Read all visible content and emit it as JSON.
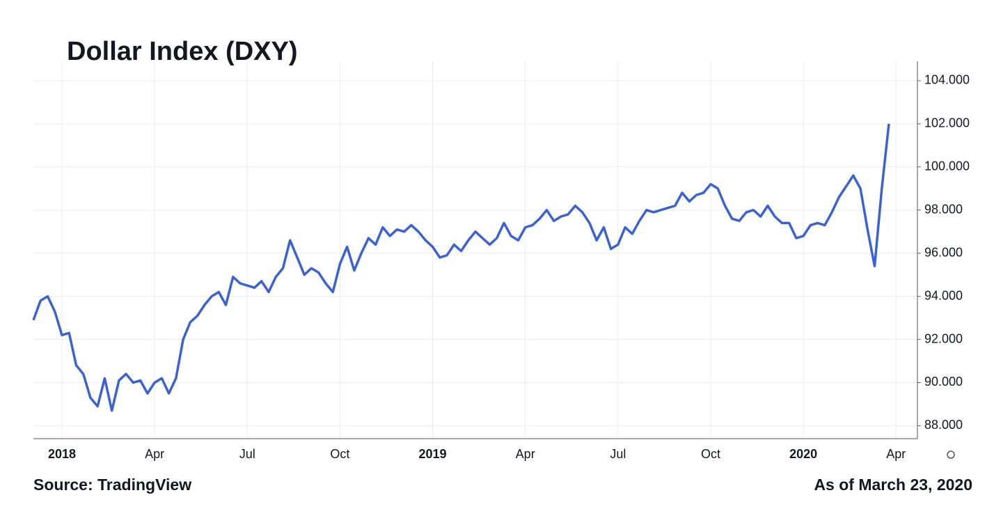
{
  "chart_data": {
    "type": "line",
    "title": "Dollar Index (DXY)",
    "source": "Source: TradingView",
    "as_of": "As of March 23, 2020",
    "categories": [
      null,
      null,
      null,
      null,
      "2018",
      null,
      null,
      null,
      null,
      null,
      null,
      null,
      null,
      null,
      null,
      null,
      null,
      "Apr",
      null,
      null,
      null,
      null,
      null,
      null,
      null,
      null,
      null,
      null,
      null,
      null,
      "Jul",
      null,
      null,
      null,
      null,
      null,
      null,
      null,
      null,
      null,
      null,
      null,
      null,
      "Oct",
      null,
      null,
      null,
      null,
      null,
      null,
      null,
      null,
      null,
      null,
      null,
      null,
      "2019",
      null,
      null,
      null,
      null,
      null,
      null,
      null,
      null,
      null,
      null,
      null,
      null,
      "Apr",
      null,
      null,
      null,
      null,
      null,
      null,
      null,
      null,
      null,
      null,
      null,
      null,
      "Jul",
      null,
      null,
      null,
      null,
      null,
      null,
      null,
      null,
      null,
      null,
      null,
      null,
      "Oct",
      null,
      null,
      null,
      null,
      null,
      null,
      null,
      null,
      null,
      null,
      null,
      null,
      "2020",
      null,
      null,
      null,
      null,
      null,
      null,
      null,
      null,
      null,
      null,
      null,
      null,
      "Apr",
      null,
      null
    ],
    "series": [
      {
        "name": "DXY",
        "color": "#3a62d6",
        "values": [
          92.9,
          93.8,
          94.0,
          93.3,
          92.2,
          92.3,
          90.8,
          90.4,
          89.3,
          88.9,
          90.2,
          88.7,
          90.1,
          90.4,
          90.0,
          90.1,
          89.5,
          90.0,
          90.2,
          89.5,
          90.2,
          92.0,
          92.8,
          93.1,
          93.6,
          94.0,
          94.2,
          93.6,
          94.9,
          94.6,
          94.5,
          94.4,
          94.7,
          94.2,
          94.9,
          95.3,
          96.6,
          95.8,
          95.0,
          95.3,
          95.1,
          94.6,
          94.2,
          95.5,
          96.3,
          95.2,
          96.0,
          96.7,
          96.4,
          97.2,
          96.8,
          97.1,
          97.0,
          97.3,
          97.0,
          96.6,
          96.3,
          95.8,
          95.9,
          96.4,
          96.1,
          96.6,
          97.0,
          96.7,
          96.4,
          96.7,
          97.4,
          96.8,
          96.6,
          97.2,
          97.3,
          97.6,
          98.0,
          97.5,
          97.7,
          97.8,
          98.2,
          97.9,
          97.4,
          96.6,
          97.2,
          96.2,
          96.4,
          97.2,
          96.9,
          97.5,
          98.0,
          97.9,
          98.0,
          98.1,
          98.2,
          98.8,
          98.4,
          98.7,
          98.8,
          99.2,
          99.0,
          98.2,
          97.6,
          97.5,
          97.9,
          98.0,
          97.7,
          98.2,
          97.7,
          97.4,
          97.4,
          96.7,
          96.8,
          97.3,
          97.4,
          97.3,
          97.9,
          98.6,
          99.1,
          99.6,
          99.0,
          97.1,
          95.4,
          99.0,
          102.0,
          null,
          null,
          null
        ]
      }
    ],
    "ylim": [
      87.4,
      104.9
    ],
    "yticks": [
      {
        "value": 88,
        "label": "88.000"
      },
      {
        "value": 90,
        "label": "90.000"
      },
      {
        "value": 92,
        "label": "92.000"
      },
      {
        "value": 94,
        "label": "94.000"
      },
      {
        "value": 96,
        "label": "96.000"
      },
      {
        "value": 98,
        "label": "98.000"
      },
      {
        "value": 100,
        "label": "100.000"
      },
      {
        "value": 102,
        "label": "102.000"
      },
      {
        "value": 104,
        "label": "104.000"
      }
    ],
    "grid": true
  }
}
